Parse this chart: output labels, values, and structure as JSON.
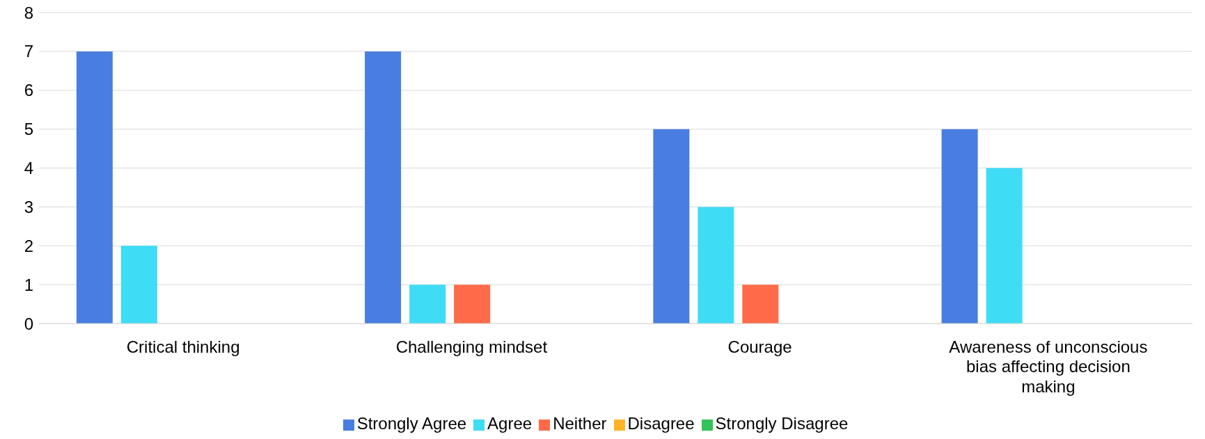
{
  "chart_data": {
    "type": "bar",
    "categories": [
      "Critical thinking",
      "Challenging mindset",
      "Courage",
      "Awareness of unconscious bias affecting decision making"
    ],
    "series": [
      {
        "name": "Strongly Agree",
        "color": "#4a7de0",
        "values": [
          7,
          7,
          5,
          5
        ]
      },
      {
        "name": "Agree",
        "color": "#3fdcf5",
        "values": [
          2,
          1,
          3,
          4
        ]
      },
      {
        "name": "Neither",
        "color": "#ff6a48",
        "values": [
          0,
          1,
          1,
          0
        ]
      },
      {
        "name": "Disagree",
        "color": "#ffb326",
        "values": [
          0,
          0,
          0,
          0
        ]
      },
      {
        "name": "Strongly Disagree",
        "color": "#33c15a",
        "values": [
          0,
          0,
          0,
          0
        ]
      }
    ],
    "ylim": [
      0,
      8
    ],
    "yticks": [
      0,
      1,
      2,
      3,
      4,
      5,
      6,
      7,
      8
    ],
    "grid": "y",
    "legend": "bottom"
  }
}
